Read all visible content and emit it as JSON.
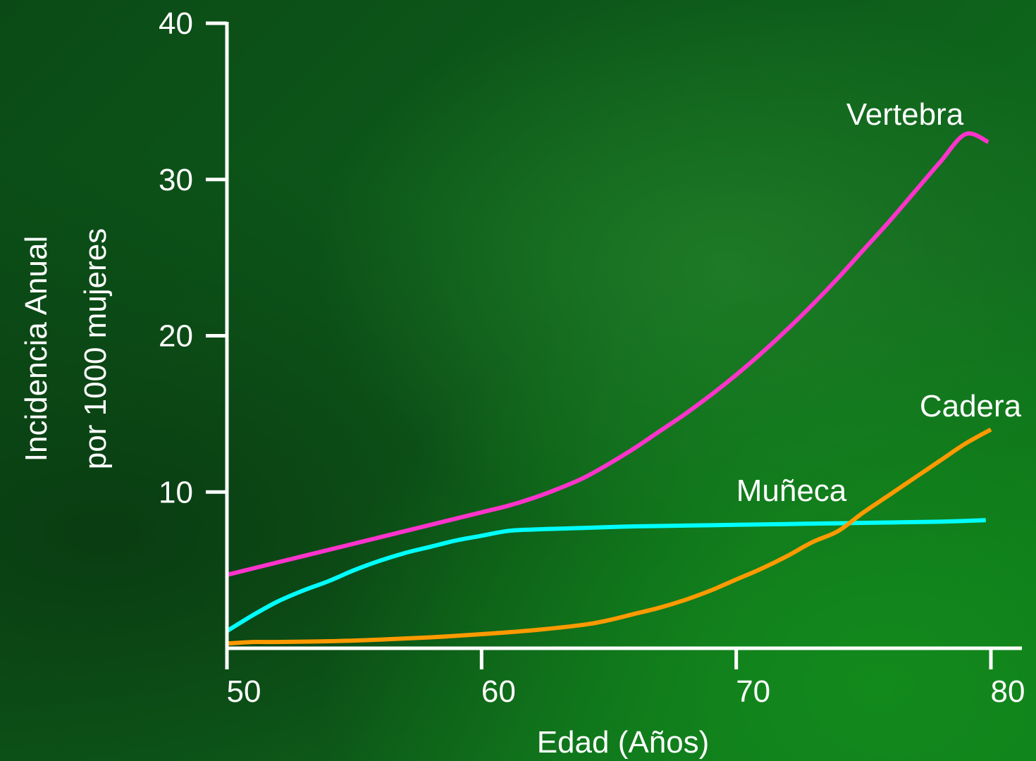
{
  "chart_data": {
    "type": "line",
    "xlabel": "Edad (Años)",
    "ylabel": "Incidencia Anual por 1000 mujeres",
    "ylabel_lines": [
      "Incidencia Anual",
      "por 1000 mujeres"
    ],
    "xlim": [
      50,
      80
    ],
    "ylim": [
      0,
      40
    ],
    "xticks": [
      50,
      60,
      70,
      80
    ],
    "yticks": [
      10,
      20,
      30,
      40
    ],
    "grid": false,
    "series": [
      {
        "name": "Vertebra",
        "color": "#ff33cc",
        "x": [
          50,
          52,
          54,
          56,
          58,
          60,
          61,
          62,
          63,
          64,
          65,
          66,
          67,
          68,
          69,
          70,
          71,
          72,
          73,
          74,
          75,
          76,
          77,
          78,
          79,
          79.9
        ],
        "y": [
          4.7,
          5.5,
          6.3,
          7.1,
          7.9,
          8.7,
          9.1,
          9.6,
          10.2,
          10.9,
          11.8,
          12.8,
          13.9,
          15.0,
          16.2,
          17.5,
          18.9,
          20.4,
          22.0,
          23.7,
          25.5,
          27.3,
          29.2,
          31.1,
          32.9,
          32.4
        ]
      },
      {
        "name": "Muñeca",
        "color": "#00ffff",
        "x": [
          50,
          51,
          52,
          53,
          54,
          55,
          56,
          57,
          58,
          59,
          60,
          61,
          62,
          64,
          66,
          68,
          70,
          72,
          74,
          76,
          78,
          79.8
        ],
        "y": [
          1.1,
          2.1,
          3.0,
          3.7,
          4.3,
          5.0,
          5.6,
          6.1,
          6.5,
          6.9,
          7.2,
          7.5,
          7.6,
          7.7,
          7.8,
          7.85,
          7.9,
          7.95,
          8.0,
          8.05,
          8.1,
          8.2
        ]
      },
      {
        "name": "Cadera",
        "color": "#ff9900",
        "x": [
          50,
          51,
          52,
          54,
          56,
          58,
          60,
          62,
          64,
          65,
          66,
          67,
          68,
          69,
          70,
          71,
          72,
          73,
          74,
          75,
          76,
          77,
          78,
          79,
          80
        ],
        "y": [
          0.3,
          0.4,
          0.4,
          0.45,
          0.55,
          0.7,
          0.9,
          1.15,
          1.5,
          1.8,
          2.2,
          2.6,
          3.1,
          3.7,
          4.4,
          5.1,
          5.9,
          6.8,
          7.5,
          8.7,
          9.8,
          10.9,
          12.0,
          13.1,
          14.0
        ]
      }
    ]
  }
}
